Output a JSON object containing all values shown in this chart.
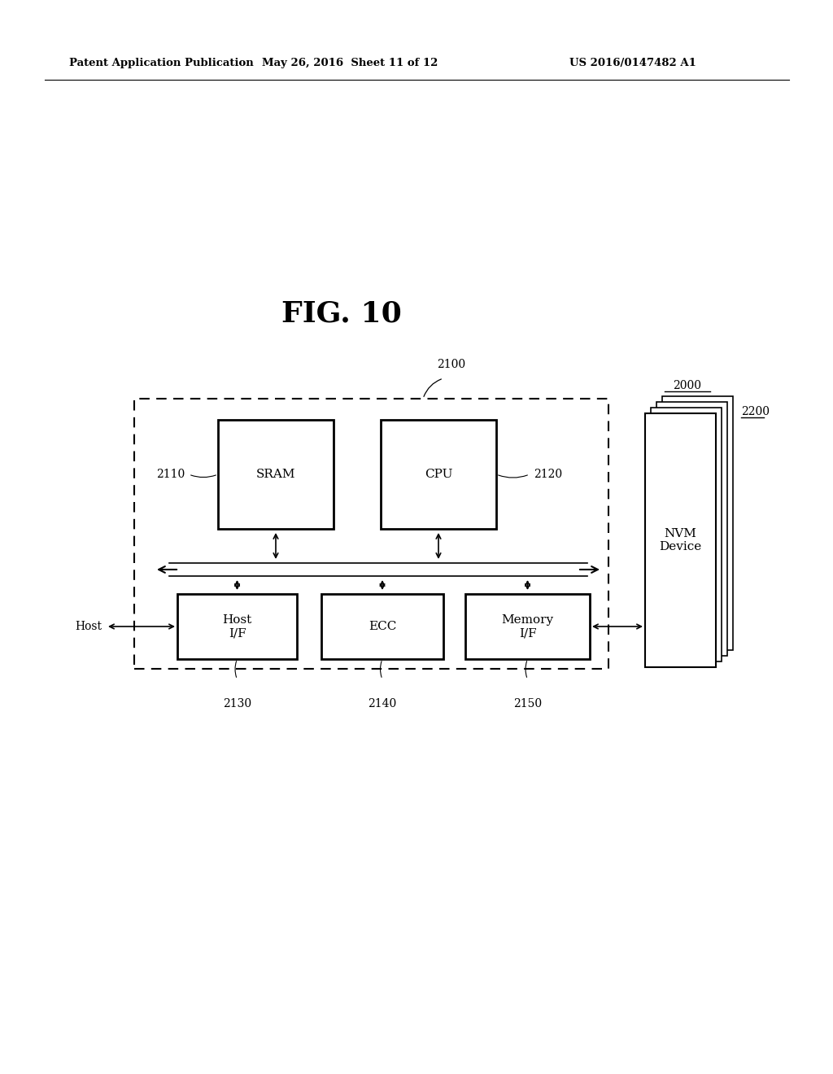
{
  "bg_color": "#ffffff",
  "header_left": "Patent Application Publication",
  "header_mid": "May 26, 2016  Sheet 11 of 12",
  "header_right": "US 2016/0147482 A1",
  "fig_label": "FIG. 10",
  "label_2000": "2000",
  "label_2100": "2100",
  "label_2200": "2200",
  "label_2110": "2110",
  "label_2120": "2120",
  "label_2130": "2130",
  "label_2140": "2140",
  "label_2150": "2150",
  "box_sram_text": "SRAM",
  "box_cpu_text": "CPU",
  "box_hostif_text": "Host\nI/F",
  "box_ecc_text": "ECC",
  "box_memif_text": "Memory\nI/F",
  "box_nvm_text": "NVM\nDevice",
  "host_label": "Host"
}
